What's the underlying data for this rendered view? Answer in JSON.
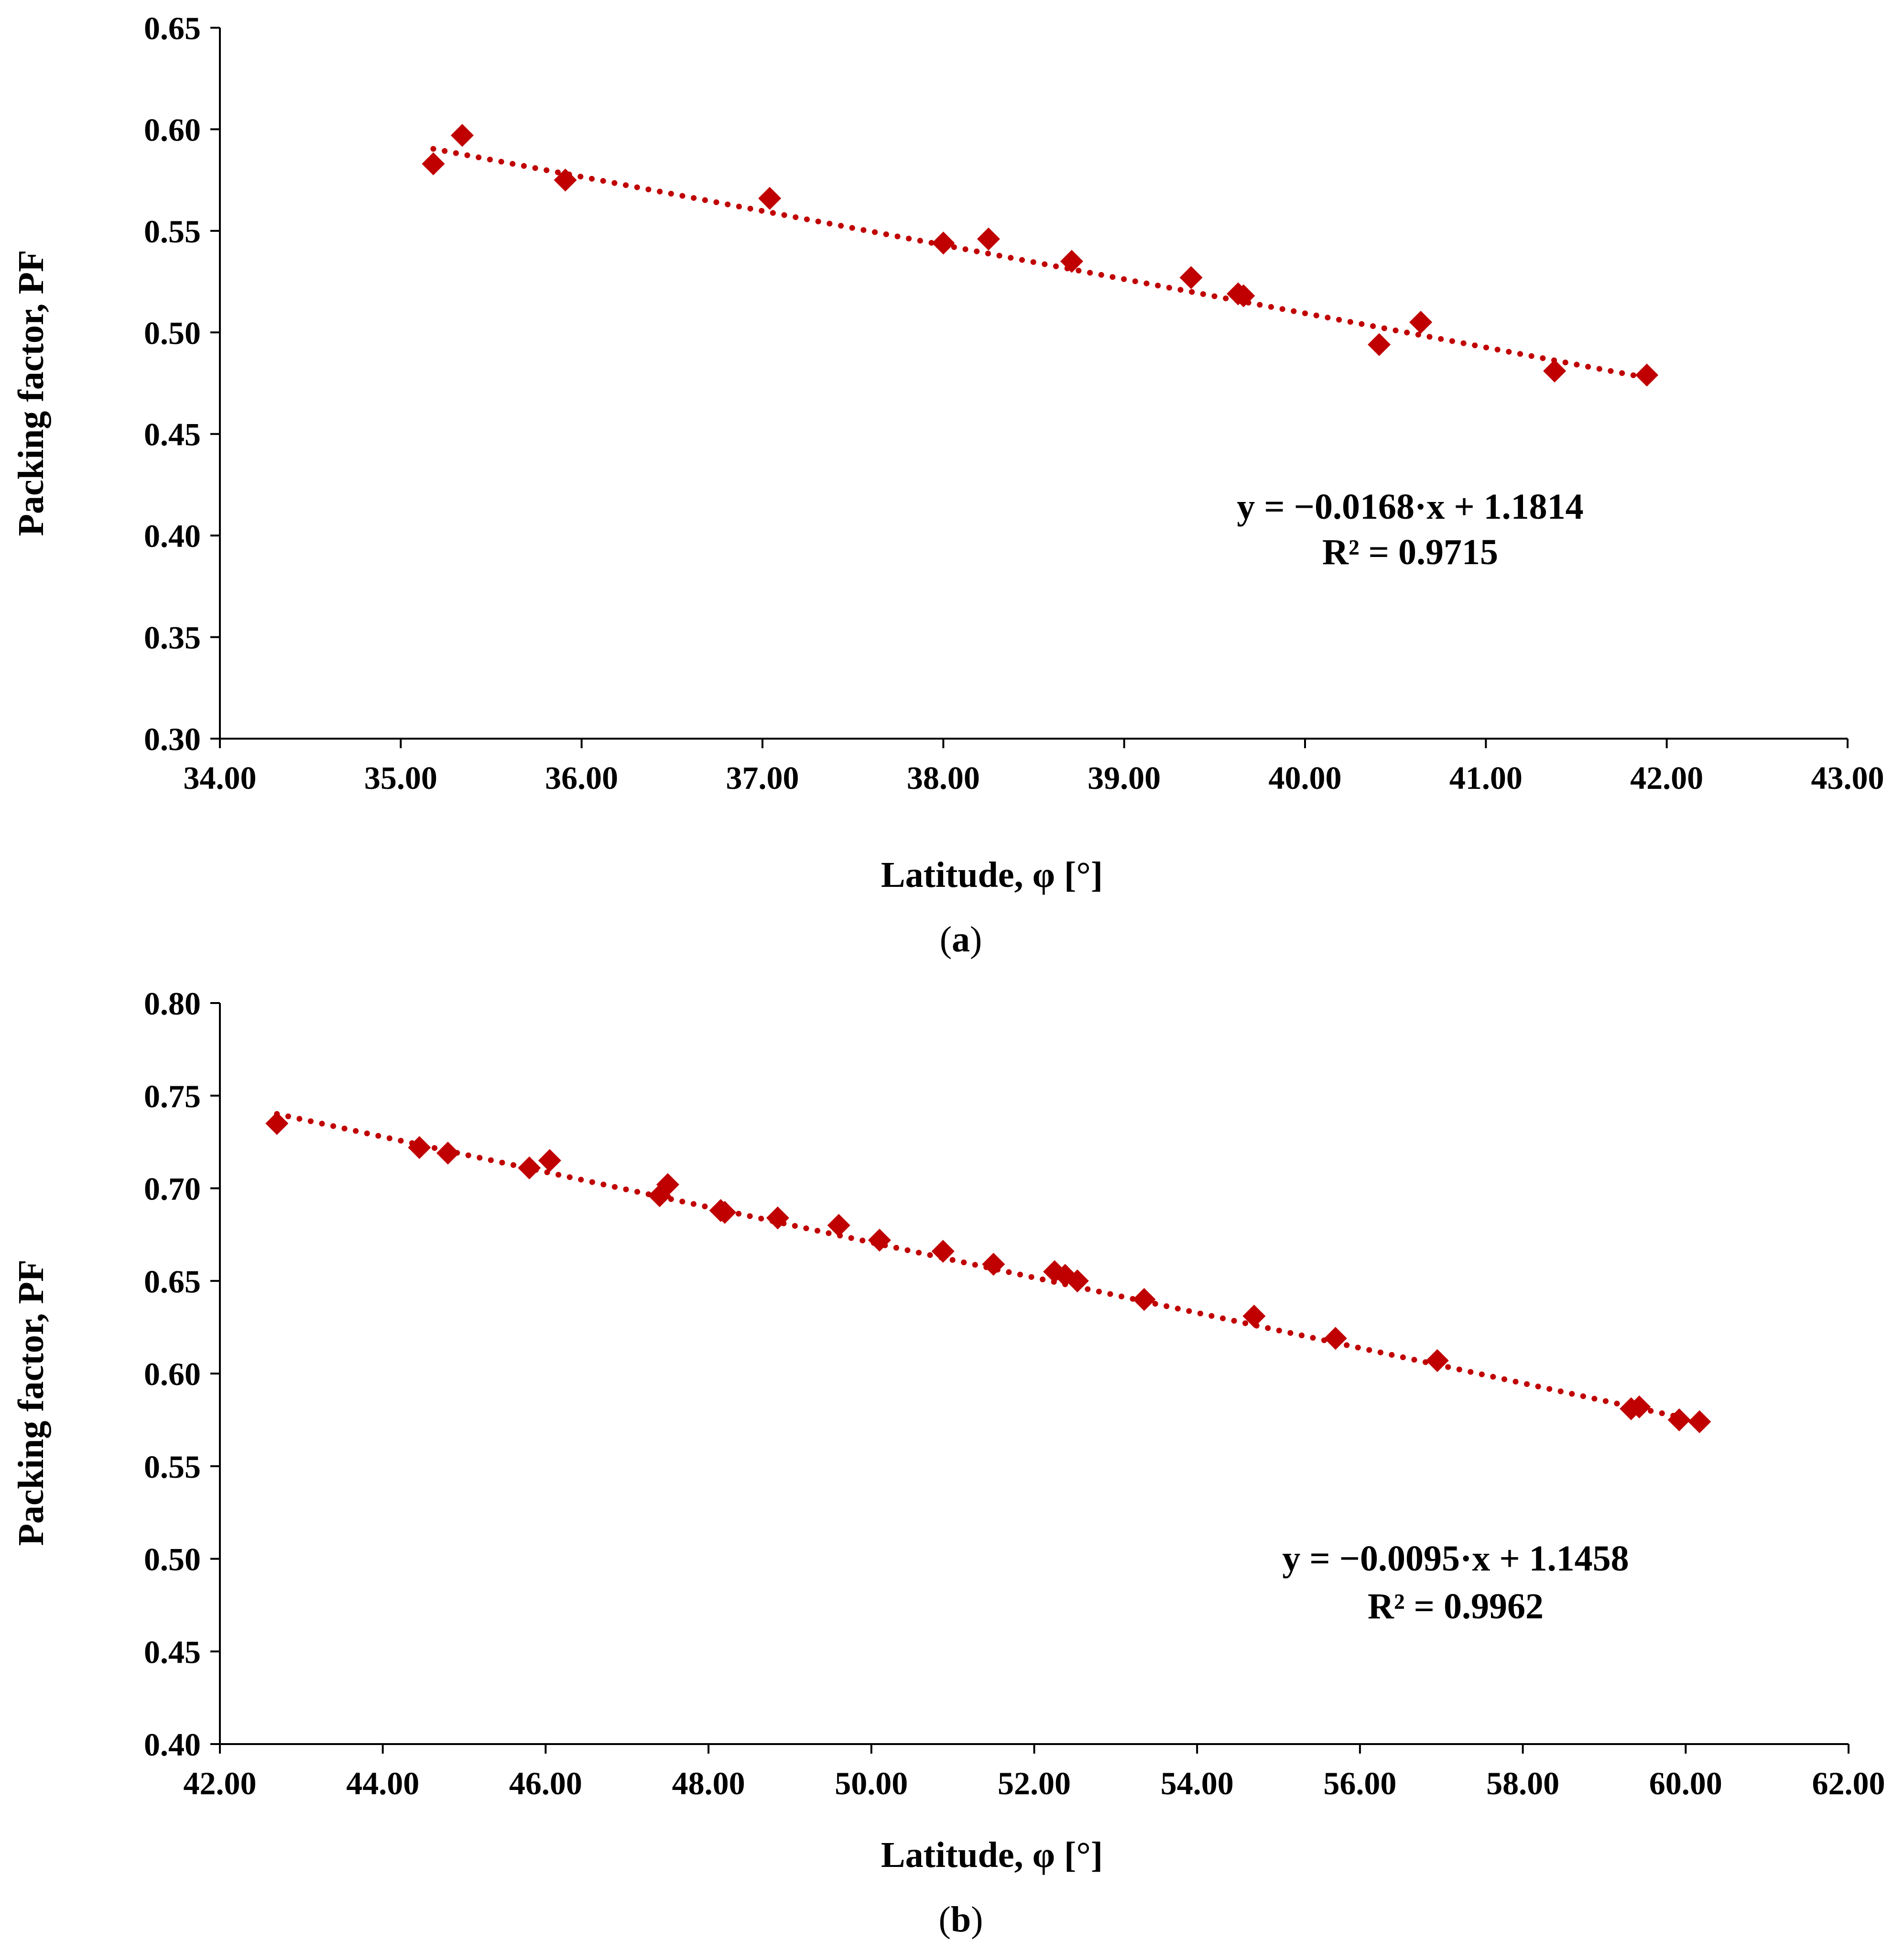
{
  "chart_data": [
    {
      "type": "scatter",
      "panel": "(a)",
      "caption_open": "(",
      "caption_letter": "a",
      "caption_close": ")",
      "xlabel": "Latitude, φ [°]",
      "ylabel": "Packing factor, PF",
      "xlim": [
        34,
        43
      ],
      "ylim": [
        0.3,
        0.65
      ],
      "xticks": [
        "34.00",
        "35.00",
        "36.00",
        "37.00",
        "38.00",
        "39.00",
        "40.00",
        "41.00",
        "42.00",
        "43.00"
      ],
      "yticks": [
        "0.30",
        "0.35",
        "0.40",
        "0.45",
        "0.50",
        "0.55",
        "0.60",
        "0.65"
      ],
      "grid": false,
      "marker_color": "#C00000",
      "trendline": {
        "type": "linear",
        "slope": -0.0168,
        "intercept": 1.1814,
        "style": "dotted"
      },
      "equation": "y = −0.0168·x + 1.1814",
      "r2": "R² = 0.9715",
      "series": [
        {
          "name": "PF",
          "x": [
            35.18,
            35.34,
            35.91,
            37.04,
            38.0,
            38.25,
            38.71,
            39.37,
            39.63,
            39.66,
            40.41,
            40.64,
            41.38,
            41.89
          ],
          "y": [
            0.583,
            0.597,
            0.575,
            0.566,
            0.544,
            0.546,
            0.535,
            0.527,
            0.519,
            0.518,
            0.494,
            0.505,
            0.481,
            0.479
          ]
        }
      ]
    },
    {
      "type": "scatter",
      "panel": "(b)",
      "caption_open": "(",
      "caption_letter": "b",
      "caption_close": ")",
      "xlabel": "Latitude, φ [°]",
      "ylabel": "Packing factor, PF",
      "xlim": [
        42,
        62
      ],
      "ylim": [
        0.4,
        0.8
      ],
      "xticks": [
        "42.00",
        "44.00",
        "46.00",
        "48.00",
        "50.00",
        "52.00",
        "54.00",
        "56.00",
        "58.00",
        "60.00",
        "62.00"
      ],
      "yticks": [
        "0.40",
        "0.45",
        "0.50",
        "0.55",
        "0.60",
        "0.65",
        "0.70",
        "0.75",
        "0.80"
      ],
      "grid": false,
      "marker_color": "#C00000",
      "trendline": {
        "type": "linear",
        "slope": -0.0095,
        "intercept": 1.1458,
        "style": "dotted"
      },
      "equation": "y = −0.0095·x + 1.1458",
      "r2": "R² = 0.9962",
      "series": [
        {
          "name": "PF",
          "x": [
            42.7,
            44.45,
            44.8,
            45.8,
            46.05,
            47.4,
            47.5,
            48.15,
            48.2,
            48.85,
            49.6,
            50.1,
            50.88,
            51.5,
            52.25,
            52.38,
            52.53,
            53.35,
            54.7,
            55.7,
            56.95,
            59.33,
            59.43,
            59.92,
            60.17
          ],
          "y": [
            0.735,
            0.722,
            0.719,
            0.711,
            0.715,
            0.696,
            0.702,
            0.688,
            0.687,
            0.684,
            0.68,
            0.672,
            0.666,
            0.659,
            0.655,
            0.653,
            0.65,
            0.64,
            0.631,
            0.619,
            0.607,
            0.581,
            0.582,
            0.575,
            0.574
          ]
        }
      ]
    }
  ]
}
